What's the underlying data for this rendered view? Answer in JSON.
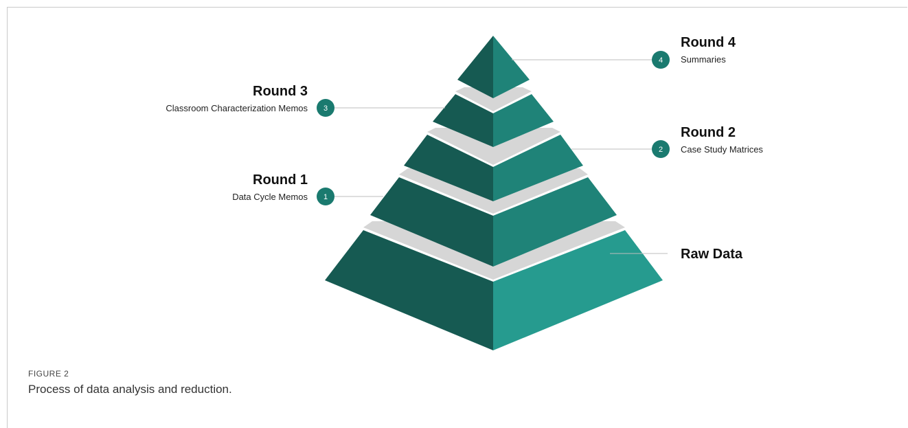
{
  "figure": {
    "label": "FIGURE 2",
    "caption": "Process of data analysis and reduction."
  },
  "colors": {
    "left_face": "#165a52",
    "right_face": "#1f8378",
    "right_face_base": "#269b8f",
    "separator": "#d6d6d6",
    "badge": "#1a7a6f",
    "leader_line": "#bdbdbd"
  },
  "levels": [
    {
      "number": "4",
      "title": "Round 4",
      "subtitle": "Summaries",
      "side": "right"
    },
    {
      "number": "3",
      "title": "Round 3",
      "subtitle": "Classroom Characterization Memos",
      "side": "left"
    },
    {
      "number": "2",
      "title": "Round 2",
      "subtitle": "Case Study Matrices",
      "side": "right"
    },
    {
      "number": "1",
      "title": "Round 1",
      "subtitle": "Data Cycle Memos",
      "side": "left"
    },
    {
      "number": "",
      "title": "Raw Data",
      "subtitle": "",
      "side": "right"
    }
  ]
}
